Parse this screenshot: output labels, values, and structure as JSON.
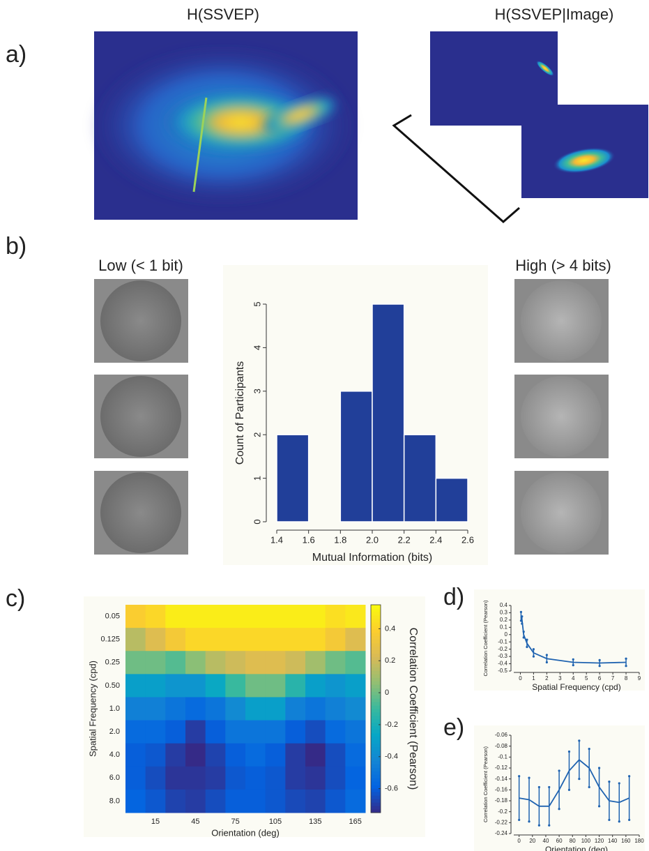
{
  "panel_labels": [
    "a)",
    "b)",
    "c)",
    "d)",
    "e)"
  ],
  "panel_a": {
    "left_title": "H(SSVEP)",
    "right_title": "H(SSVEP|Image)"
  },
  "panel_b": {
    "low_title": "Low (< 1 bit)",
    "high_title": "High (> 4 bits)"
  },
  "chart_data": [
    {
      "type": "histogram",
      "bins": [
        1.4,
        1.6,
        1.8,
        2.0,
        2.2,
        2.4,
        2.6
      ],
      "values": [
        2,
        0,
        3,
        5,
        2,
        1
      ],
      "color": "#213f99",
      "xlabel": "Mutual Information (bits)",
      "ylabel": "Count of Participants",
      "xlim": [
        1.4,
        2.6
      ],
      "xticks": [
        1.4,
        1.6,
        1.8,
        {
          "value": 2,
          "label": "2.0"
        },
        2.2,
        2.4,
        2.6
      ],
      "ylim": [
        0,
        5
      ],
      "yticks": [
        0,
        1,
        2,
        3,
        4,
        5
      ]
    },
    {
      "type": "heatmap",
      "xlabel": "Orientation (deg)",
      "ylabel": "Spatial Frequency (cpd)",
      "colorbar_label": "Correlation Coefficient (Pearson)",
      "x_categories": [
        null,
        "15",
        null,
        "45",
        null,
        "75",
        null,
        "105",
        null,
        "135",
        null,
        "165"
      ],
      "y_categories": [
        "0.05",
        "0.125",
        "0.25",
        "0.50",
        "1.0",
        "2.0",
        "4.0",
        "6.0",
        "8.0"
      ],
      "values": [
        [
          0.38,
          0.42,
          0.5,
          0.5,
          0.5,
          0.5,
          0.5,
          0.5,
          0.5,
          0.5,
          0.45,
          0.48
        ],
        [
          0.15,
          0.25,
          0.35,
          0.42,
          0.42,
          0.42,
          0.42,
          0.42,
          0.42,
          0.42,
          0.35,
          0.25
        ],
        [
          0.0,
          0.0,
          -0.05,
          0.05,
          0.15,
          0.2,
          0.25,
          0.25,
          0.2,
          0.1,
          0.0,
          -0.05
        ],
        [
          -0.3,
          -0.3,
          -0.35,
          -0.35,
          -0.25,
          -0.1,
          0.0,
          0.0,
          -0.15,
          -0.3,
          -0.35,
          -0.3
        ],
        [
          -0.45,
          -0.45,
          -0.5,
          -0.55,
          -0.5,
          -0.4,
          -0.3,
          -0.3,
          -0.45,
          -0.5,
          -0.45,
          -0.4
        ],
        [
          -0.55,
          -0.55,
          -0.6,
          -0.7,
          -0.6,
          -0.5,
          -0.5,
          -0.5,
          -0.6,
          -0.65,
          -0.55,
          -0.5
        ],
        [
          -0.6,
          -0.62,
          -0.7,
          -0.75,
          -0.68,
          -0.6,
          -0.55,
          -0.6,
          -0.7,
          -0.75,
          -0.65,
          -0.55
        ],
        [
          -0.6,
          -0.65,
          -0.72,
          -0.72,
          -0.7,
          -0.62,
          -0.6,
          -0.62,
          -0.7,
          -0.72,
          -0.65,
          -0.58
        ],
        [
          -0.58,
          -0.62,
          -0.68,
          -0.7,
          -0.65,
          -0.6,
          -0.6,
          -0.62,
          -0.66,
          -0.68,
          -0.62,
          -0.55
        ]
      ],
      "zlim": [
        -0.75,
        0.55
      ],
      "zticks": [
        0.4,
        0.2,
        0,
        -0.2,
        -0.4,
        -0.6
      ],
      "colormap": [
        "#352a87",
        "#0363e1",
        "#1485d4",
        "#06a7c6",
        "#38b99e",
        "#92bf73",
        "#d9ba56",
        "#fcce2e",
        "#f9fb0e"
      ]
    },
    {
      "type": "errorline",
      "xlabel": "Spatial Frequency (cpd)",
      "ylabel": "Correlation Coefficient (Pearson)",
      "x": [
        0.05,
        0.125,
        0.25,
        0.5,
        1,
        2,
        4,
        6,
        8
      ],
      "values": [
        0.25,
        0.2,
        0.0,
        -0.12,
        -0.25,
        -0.33,
        -0.38,
        -0.39,
        -0.38
      ],
      "errors": [
        0.06,
        0.05,
        0.04,
        0.05,
        0.05,
        0.05,
        0.04,
        0.04,
        0.05
      ],
      "color": "#1f63b0",
      "xlim": [
        -0.5,
        9
      ],
      "xticks": [
        0,
        1,
        2,
        3,
        4,
        5,
        6,
        7,
        8,
        9
      ],
      "ylim": [
        -0.5,
        0.4
      ],
      "yticks": [
        -0.5,
        -0.4,
        -0.3,
        -0.2,
        -0.1,
        0,
        0.1,
        0.2,
        0.3,
        0.4
      ]
    },
    {
      "type": "errorline",
      "xlabel": "Orientation (deg)",
      "ylabel": "Correlation Coefficient (Pearson)",
      "x": [
        0,
        15,
        30,
        45,
        60,
        75,
        90,
        105,
        120,
        135,
        150,
        165
      ],
      "values": [
        -0.175,
        -0.178,
        -0.19,
        -0.19,
        -0.16,
        -0.125,
        -0.105,
        -0.12,
        -0.155,
        -0.18,
        -0.183,
        -0.175
      ],
      "errors": [
        0.04,
        0.04,
        0.035,
        0.035,
        0.035,
        0.035,
        0.035,
        0.035,
        0.035,
        0.035,
        0.035,
        0.04
      ],
      "color": "#1f63b0",
      "xlim": [
        -8,
        180
      ],
      "xticks": [
        0,
        20,
        40,
        60,
        80,
        100,
        120,
        140,
        160,
        180
      ],
      "ylim": [
        -0.24,
        -0.06
      ],
      "yticks": [
        -0.24,
        -0.22,
        -0.2,
        -0.18,
        -0.16,
        -0.14,
        -0.12,
        -0.1,
        -0.08,
        -0.06
      ]
    }
  ]
}
